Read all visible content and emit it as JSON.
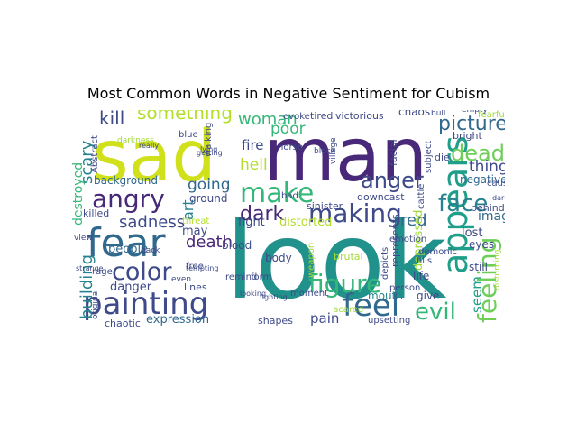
{
  "chart_data": {
    "type": "wordcloud",
    "title": "Most Common Words in Negative Sentiment for Cubism",
    "colormap": [
      "#440154",
      "#3b528b",
      "#21918c",
      "#5ec962",
      "#fde725"
    ],
    "words": [
      {
        "text": "look",
        "color": "#21918c"
      },
      {
        "text": "man",
        "color": "#482878"
      },
      {
        "text": "sad",
        "color": "#d0e11c"
      },
      {
        "text": "fear",
        "color": "#31688e"
      },
      {
        "text": "painting",
        "color": "#3e4a89"
      },
      {
        "text": "appears",
        "color": "#1f9e89"
      },
      {
        "text": "feel",
        "color": "#31688e"
      },
      {
        "text": "make",
        "color": "#35b779"
      },
      {
        "text": "making",
        "color": "#3e4a89"
      },
      {
        "text": "angry",
        "color": "#482878"
      },
      {
        "text": "figure",
        "color": "#35b779"
      },
      {
        "text": "color",
        "color": "#3e4a89"
      },
      {
        "text": "anger",
        "color": "#3e4a89"
      },
      {
        "text": "face",
        "color": "#26828e"
      },
      {
        "text": "dead",
        "color": "#6ece58"
      },
      {
        "text": "dark",
        "color": "#482878"
      },
      {
        "text": "feeling",
        "color": "#6ece58"
      },
      {
        "text": "evil",
        "color": "#35b779"
      },
      {
        "text": "picture",
        "color": "#31688e"
      },
      {
        "text": "something",
        "color": "#b5de2b"
      },
      {
        "text": "kill",
        "color": "#3e4a89"
      },
      {
        "text": "woman",
        "color": "#35b779"
      },
      {
        "text": "sadness",
        "color": "#3e4a89"
      },
      {
        "text": "death",
        "color": "#482878"
      },
      {
        "text": "going",
        "color": "#31688e"
      },
      {
        "text": "red",
        "color": "#31688e"
      },
      {
        "text": "thing",
        "color": "#3e4a89"
      },
      {
        "text": "building",
        "color": "#26828e"
      },
      {
        "text": "scary",
        "color": "#26828e"
      },
      {
        "text": "poor",
        "color": "#35b779"
      },
      {
        "text": "hell",
        "color": "#b5de2b"
      },
      {
        "text": "fire",
        "color": "#3e4a89"
      },
      {
        "text": "art",
        "color": "#26828e"
      },
      {
        "text": "seem",
        "color": "#1f9e89"
      },
      {
        "text": "pain",
        "color": "#3e4a89"
      },
      {
        "text": "expression",
        "color": "#31688e"
      },
      {
        "text": "image",
        "color": "#31688e"
      },
      {
        "text": "depressed",
        "color": "#a0da39"
      },
      {
        "text": "distorted",
        "color": "#b5de2b"
      },
      {
        "text": "negative",
        "color": "#31688e"
      },
      {
        "text": "destroyed",
        "color": "#35b779"
      },
      {
        "text": "chaos",
        "color": "#3e4a89"
      },
      {
        "text": "danger",
        "color": "#3e4a89"
      },
      {
        "text": "background",
        "color": "#31688e"
      },
      {
        "text": "lost",
        "color": "#3e4a89"
      },
      {
        "text": "eyes",
        "color": "#3e4a89"
      },
      {
        "text": "people",
        "color": "#31688e"
      },
      {
        "text": "may",
        "color": "#3e4a89"
      },
      {
        "text": "fight",
        "color": "#3e4a89"
      },
      {
        "text": "chaotic",
        "color": "#3e4a89"
      },
      {
        "text": "mouth",
        "color": "#26828e"
      },
      {
        "text": "shapes",
        "color": "#3e4a89"
      },
      {
        "text": "blood",
        "color": "#3e4a89"
      },
      {
        "text": "body",
        "color": "#3e4a89"
      },
      {
        "text": "ground",
        "color": "#3e4a89"
      },
      {
        "text": "downcast",
        "color": "#3e4a89"
      },
      {
        "text": "sinister",
        "color": "#3e4a89"
      },
      {
        "text": "killed",
        "color": "#3e4a89"
      },
      {
        "text": "give",
        "color": "#3e4a89"
      },
      {
        "text": "life",
        "color": "#3e4a89"
      },
      {
        "text": "still",
        "color": "#3e4a89"
      },
      {
        "text": "behind",
        "color": "#3e4a89"
      },
      {
        "text": "represents",
        "color": "#3e4a89"
      },
      {
        "text": "tired",
        "color": "#3e4a89"
      },
      {
        "text": "victorious",
        "color": "#3e4a89"
      },
      {
        "text": "evoke",
        "color": "#3e4a89"
      },
      {
        "text": "facial",
        "color": "#3e4a89"
      },
      {
        "text": "bright",
        "color": "#3e4a89"
      },
      {
        "text": "fearful",
        "color": "#a0da39"
      },
      {
        "text": "walking",
        "color": "#3e4a89"
      },
      {
        "text": "horse",
        "color": "#3e4a89"
      },
      {
        "text": "Abstract",
        "color": "#3e4a89"
      },
      {
        "text": "lines",
        "color": "#3e4a89"
      },
      {
        "text": "rage",
        "color": "#3e4a89"
      },
      {
        "text": "free",
        "color": "#3e4a89"
      },
      {
        "text": "form",
        "color": "#3e4a89"
      },
      {
        "text": "remind",
        "color": "#3e4a89"
      },
      {
        "text": "threat",
        "color": "#b5de2b"
      },
      {
        "text": "emotion",
        "color": "#3e4a89"
      },
      {
        "text": "depicts",
        "color": "#3e4a89"
      },
      {
        "text": "cattle",
        "color": "#3e4a89"
      },
      {
        "text": "die",
        "color": "#3e4a89"
      },
      {
        "text": "subject",
        "color": "#3e4a89"
      },
      {
        "text": "demonic",
        "color": "#3e4a89"
      },
      {
        "text": "fills",
        "color": "#3e4a89"
      },
      {
        "text": "causes",
        "color": "#3e4a89"
      },
      {
        "text": "darker",
        "color": "#3e4a89"
      },
      {
        "text": "disturbing",
        "color": "#a0da39"
      },
      {
        "text": "upsetting",
        "color": "#3e4a89"
      },
      {
        "text": "brutal",
        "color": "#a0da39"
      },
      {
        "text": "person",
        "color": "#3e4a89"
      },
      {
        "text": "scared",
        "color": "#a0da39"
      },
      {
        "text": "moment",
        "color": "#3e4a89"
      },
      {
        "text": "weapon",
        "color": "#a0da39"
      },
      {
        "text": "blue",
        "color": "#3e4a89"
      },
      {
        "text": "darkness",
        "color": "#a0da39"
      },
      {
        "text": "bad",
        "color": "#3e4a89"
      },
      {
        "text": "view",
        "color": "#3e4a89"
      },
      {
        "text": "back",
        "color": "#3e4a89"
      },
      {
        "text": "even",
        "color": "#3e4a89"
      },
      {
        "text": "village",
        "color": "#3e4a89"
      },
      {
        "text": "block",
        "color": "#3e4a89"
      },
      {
        "text": "bull",
        "color": "#3e4a89"
      },
      {
        "text": "empty",
        "color": "#3e4a89"
      },
      {
        "text": "original",
        "color": "#3e4a89"
      },
      {
        "text": "looking",
        "color": "#3e4a89"
      },
      {
        "text": "fighting",
        "color": "#3e4a89"
      },
      {
        "text": "tempting",
        "color": "#3e4a89"
      },
      {
        "text": "strange",
        "color": "#3e4a89"
      },
      {
        "text": "getting",
        "color": "#3e4a89"
      },
      {
        "text": "lying",
        "color": "#3e4a89"
      },
      {
        "text": "really",
        "color": "#3e4a89"
      }
    ]
  }
}
